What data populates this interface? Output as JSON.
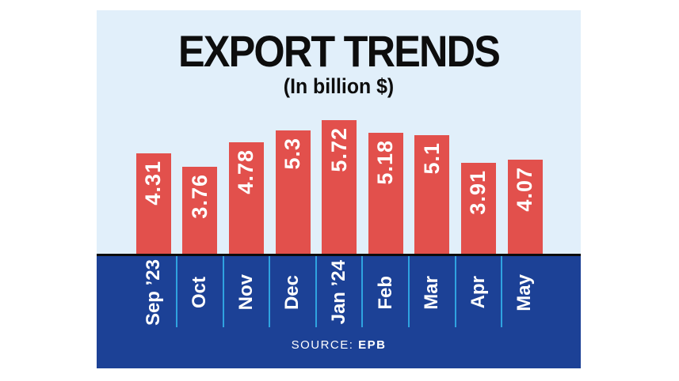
{
  "header": {
    "title": "EXPORT TRENDS",
    "subtitle": "(In billion $)"
  },
  "footer": {
    "source_label": "SOURCE: ",
    "source_value": "EPB"
  },
  "colors": {
    "panel_bg": "#e1effa",
    "bar": "#e2504c",
    "band_bg": "#1c4196",
    "separator": "#2fa3e0",
    "axis_line": "#0c0c0c",
    "title_text": "#0d0d0d",
    "label_text": "#ffffff"
  },
  "chart_data": {
    "type": "bar",
    "title": "EXPORT TRENDS",
    "subtitle": "(In billion $)",
    "unit": "billion $",
    "categories": [
      "Sep ’23",
      "Oct",
      "Nov",
      "Dec",
      "Jan ’24",
      "Feb",
      "Mar",
      "Apr",
      "May"
    ],
    "values": [
      4.31,
      3.76,
      4.78,
      5.3,
      5.72,
      5.18,
      5.1,
      3.91,
      4.07
    ],
    "value_labels": [
      "4.31",
      "3.76",
      "4.78",
      "5.3",
      "5.72",
      "5.18",
      "5.1",
      "3.91",
      "4.07"
    ],
    "source": "EPB",
    "bar_color": "#e2504c",
    "value_label_style": "white, bold, rotated -90, inside top of bar",
    "x_label_rotation": -90,
    "ylim": [
      0,
      6
    ],
    "grid": false,
    "legend": false
  }
}
